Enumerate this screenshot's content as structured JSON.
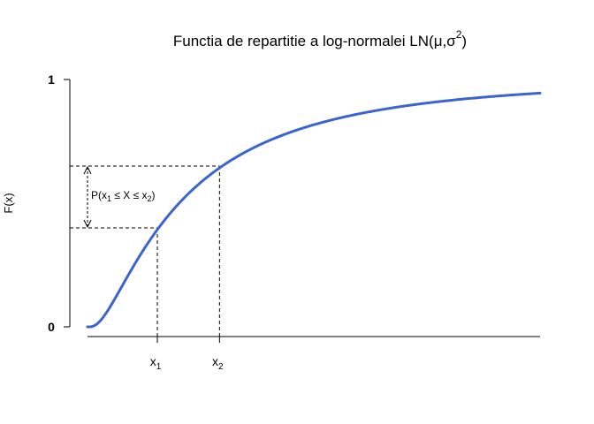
{
  "chart_data": {
    "type": "line",
    "title": {
      "text": "Functia de repartitie a log-normalei LN(",
      "mu": "μ",
      "comma": ",",
      "sigma": "σ",
      "sup": "2",
      "close": ")"
    },
    "xlabel": "",
    "ylabel": "F(x)",
    "ylim": [
      0,
      1
    ],
    "xlim": [
      0,
      9
    ],
    "y_ticks": [
      {
        "value": 0,
        "label": "0"
      },
      {
        "value": 1,
        "label": "1"
      }
    ],
    "x_ticks": [
      {
        "value": 1.389,
        "label": "x",
        "sub": "1"
      },
      {
        "value": 2.625,
        "label": "x",
        "sub": "2"
      }
    ],
    "distribution": {
      "mu": 0.6,
      "sigma": 1.0
    },
    "curve_color": "#3b64cf",
    "guide_lines": [
      {
        "x": 1.389,
        "y": 0.4
      },
      {
        "x": 2.625,
        "y": 0.65
      }
    ],
    "annotation": {
      "prefix": "P(x",
      "sub1": "1",
      "mid": " ≤ X ≤ x",
      "sub2": "2",
      "suffix": ")"
    }
  }
}
